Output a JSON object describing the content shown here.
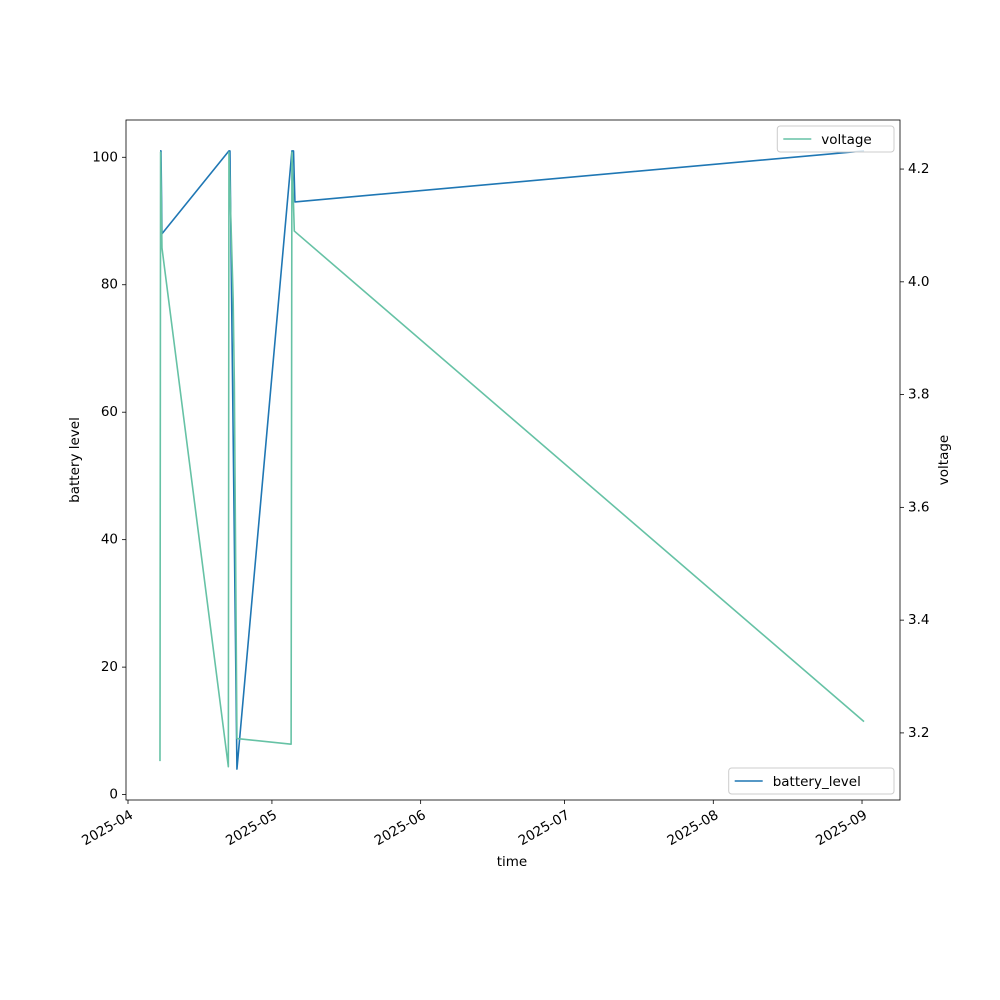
{
  "chart_data": {
    "type": "line",
    "xlabel": "time",
    "ylabel": "battery level",
    "y2label": "voltage",
    "xlim": [
      "2025-03-31T14:00Z",
      "2025-09-08T22:00Z"
    ],
    "xticks": [
      "2025-04",
      "2025-05",
      "2025-06",
      "2025-07",
      "2025-08",
      "2025-09"
    ],
    "ylim": [
      -0.85,
      105.85
    ],
    "yticks": [
      0,
      20,
      40,
      60,
      80,
      100
    ],
    "y2lim": [
      3.081,
      4.287
    ],
    "y2ticks": [
      {
        "value": 3.2,
        "label": "3.2"
      },
      {
        "value": 3.4,
        "label": "3.4"
      },
      {
        "value": 3.6,
        "label": "3.6"
      },
      {
        "value": 3.8,
        "label": "3.8"
      },
      {
        "value": 4,
        "label": "4.0"
      },
      {
        "value": 4.2,
        "label": "4.2"
      }
    ],
    "series": [
      {
        "name": "battery_level",
        "color": "#1f77b4",
        "legend": "lower right",
        "x": [
          "2025-04-07T16:00Z",
          "2025-04-07T21:00Z",
          "2025-04-08T02:00Z",
          "2025-04-22T01:00Z",
          "2025-04-22T06:00Z",
          "2025-04-23T17:00Z",
          "2025-05-05T04:00Z",
          "2025-05-05T12:00Z",
          "2025-05-05T19:00Z",
          "2025-09-01T10:00Z"
        ],
        "values": [
          101,
          101,
          88,
          101,
          101,
          4,
          101,
          101,
          93,
          101
        ]
      },
      {
        "name": "voltage",
        "color": "#66c2a5",
        "axis": "y2",
        "legend": "upper right",
        "x": [
          "2025-04-07T16:00Z",
          "2025-04-07T19:00Z",
          "2025-04-08T02:00Z",
          "2025-04-21T22:00Z",
          "2025-04-22T01:00Z",
          "2025-04-22T22:00Z",
          "2025-04-23T04:00Z",
          "2025-04-23T17:00Z",
          "2025-05-05T00:00Z",
          "2025-05-05T04:00Z",
          "2025-05-05T16:00Z",
          "2025-09-01T10:00Z"
        ],
        "values": [
          3.15,
          4.23,
          4.06,
          3.14,
          4.23,
          3.97,
          3.82,
          3.19,
          3.18,
          4.23,
          4.09,
          3.22
        ]
      }
    ]
  }
}
